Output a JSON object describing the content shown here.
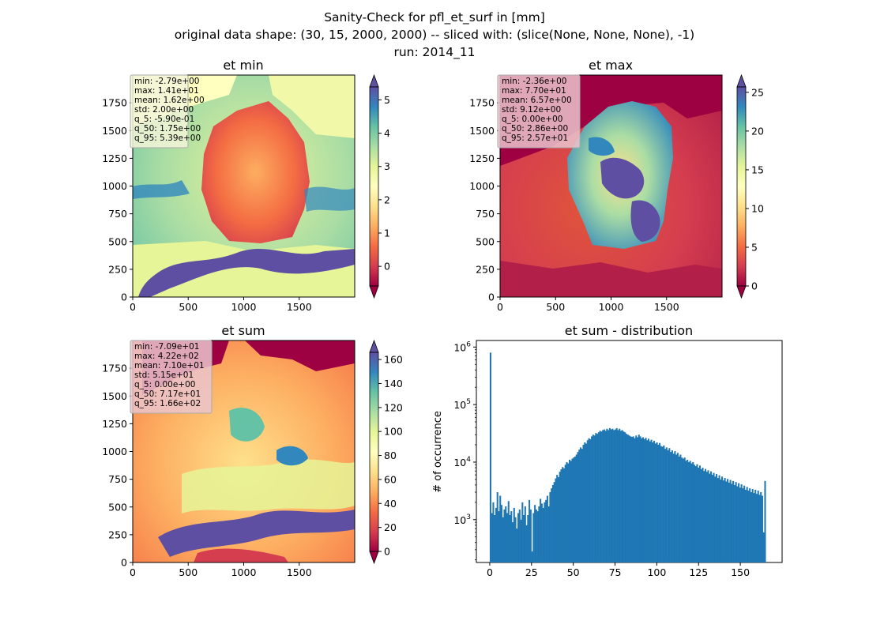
{
  "figure": {
    "suptitle_lines": [
      "Sanity-Check for pfl_et_surf in [mm]",
      "original data shape: (30, 15, 2000, 2000) -- sliced with: (slice(None, None, None), -1)",
      "run: 2014_11"
    ]
  },
  "colors": {
    "hist_bar": "#1f77b4",
    "stats_box": "rgba(235,200,205,0.75)",
    "stats_border": "#999999"
  },
  "chart_data": [
    {
      "type": "heatmap",
      "title": "et min",
      "colormap": "Spectral",
      "xticks": [
        "0",
        "500",
        "1000",
        "1500"
      ],
      "yticks": [
        "0",
        "250",
        "500",
        "750",
        "1000",
        "1250",
        "1500",
        "1750"
      ],
      "xlim": [
        0,
        2000
      ],
      "ylim": [
        0,
        2000
      ],
      "colorbar": {
        "vmin": -0.59,
        "vmax": 5.39,
        "ticks": [
          0,
          1,
          2,
          3,
          4,
          5
        ],
        "labels": [
          "0",
          "1",
          "2",
          "3",
          "4",
          "5"
        ],
        "extend": "both"
      },
      "stats": [
        "min: -2.79e+00",
        "max: 1.41e+01",
        "mean: 1.62e+00",
        "std: 2.00e+00",
        "q_5: -5.90e-01",
        "q_50: 1.75e+00",
        "q_95: 5.39e+00"
      ]
    },
    {
      "type": "heatmap",
      "title": "et max",
      "colormap": "Spectral",
      "xticks": [
        "0",
        "500",
        "1000",
        "1500"
      ],
      "yticks": [
        "0",
        "250",
        "500",
        "750",
        "1000",
        "1250",
        "1500",
        "1750"
      ],
      "xlim": [
        0,
        2000
      ],
      "ylim": [
        0,
        2000
      ],
      "colorbar": {
        "vmin": 0.0,
        "vmax": 25.7,
        "ticks": [
          0,
          5,
          10,
          15,
          20,
          25
        ],
        "labels": [
          "0",
          "5",
          "10",
          "15",
          "20",
          "25"
        ],
        "extend": "both"
      },
      "stats": [
        "min: -2.36e+00",
        "max: 7.70e+01",
        "mean: 6.57e+00",
        "std: 9.12e+00",
        "q_5: 0.00e+00",
        "q_50: 2.86e+00",
        "q_95: 2.57e+01"
      ]
    },
    {
      "type": "heatmap",
      "title": "et sum",
      "colormap": "Spectral",
      "xticks": [
        "0",
        "500",
        "1000",
        "1500"
      ],
      "yticks": [
        "0",
        "250",
        "500",
        "750",
        "1000",
        "1250",
        "1500",
        "1750"
      ],
      "xlim": [
        0,
        2000
      ],
      "ylim": [
        0,
        2000
      ],
      "colorbar": {
        "vmin": 0.0,
        "vmax": 166,
        "ticks": [
          0,
          20,
          40,
          60,
          80,
          100,
          120,
          140,
          160
        ],
        "labels": [
          "0",
          "20",
          "40",
          "60",
          "80",
          "100",
          "120",
          "140",
          "160"
        ],
        "extend": "both"
      },
      "stats": [
        "min: -7.09e+01",
        "max: 4.22e+02",
        "mean: 7.10e+01",
        "std: 5.15e+01",
        "q_5: 0.00e+00",
        "q_50: 7.17e+01",
        "q_95: 1.66e+02"
      ]
    },
    {
      "type": "bar",
      "title": "et sum - distribution",
      "ylabel": "# of occurrence",
      "xlabel": "",
      "yscale": "log",
      "xlim": [
        -8,
        175
      ],
      "ylim": [
        180,
        1300000
      ],
      "xticks": [
        0,
        25,
        50,
        75,
        100,
        125,
        150
      ],
      "xtick_labels": [
        "0",
        "25",
        "50",
        "75",
        "100",
        "125",
        "150"
      ],
      "yticks": [
        1000,
        10000,
        100000,
        1000000
      ],
      "ytick_bases": [
        "10",
        "10",
        "10",
        "10"
      ],
      "ytick_exps": [
        "3",
        "4",
        "5",
        "6"
      ],
      "bin_width": 0.83,
      "bins": [
        [
          0.0,
          800000
        ],
        [
          0.83,
          1300
        ],
        [
          1.66,
          2000
        ],
        [
          2.49,
          1200
        ],
        [
          3.32,
          1600
        ],
        [
          4.15,
          3000
        ],
        [
          4.98,
          1400
        ],
        [
          5.81,
          2600
        ],
        [
          6.64,
          1800
        ],
        [
          7.47,
          1100
        ],
        [
          8.3,
          1500
        ],
        [
          9.13,
          1700
        ],
        [
          9.96,
          1300
        ],
        [
          10.79,
          2100
        ],
        [
          11.62,
          1200
        ],
        [
          12.45,
          1400
        ],
        [
          13.28,
          900
        ],
        [
          14.11,
          1600
        ],
        [
          14.94,
          1100
        ],
        [
          15.77,
          700
        ],
        [
          16.6,
          1300
        ],
        [
          17.43,
          1500
        ],
        [
          18.26,
          1000
        ],
        [
          19.09,
          2000
        ],
        [
          19.92,
          1200
        ],
        [
          20.75,
          1700
        ],
        [
          21.58,
          800
        ],
        [
          22.41,
          1200
        ],
        [
          23.24,
          2200
        ],
        [
          24.07,
          1500
        ],
        [
          24.9,
          280
        ],
        [
          25.73,
          1300
        ],
        [
          26.56,
          1800
        ],
        [
          27.39,
          1500
        ],
        [
          28.22,
          1400
        ],
        [
          29.05,
          1700
        ],
        [
          29.88,
          2300
        ],
        [
          30.71,
          1900
        ],
        [
          31.54,
          1600
        ],
        [
          32.37,
          2000
        ],
        [
          33.2,
          2200
        ],
        [
          34.03,
          2600
        ],
        [
          34.86,
          1700
        ],
        [
          35.69,
          3000
        ],
        [
          36.52,
          3500
        ],
        [
          37.35,
          4000
        ],
        [
          38.18,
          4500
        ],
        [
          39.01,
          5200
        ],
        [
          39.84,
          6000
        ],
        [
          40.67,
          5500
        ],
        [
          41.5,
          6800
        ],
        [
          42.33,
          7500
        ],
        [
          43.16,
          8200
        ],
        [
          43.99,
          7800
        ],
        [
          44.82,
          9000
        ],
        [
          45.65,
          10000
        ],
        [
          46.48,
          9500
        ],
        [
          47.31,
          11000
        ],
        [
          48.14,
          10500
        ],
        [
          48.97,
          11500
        ],
        [
          49.8,
          12000
        ],
        [
          50.63,
          12500
        ],
        [
          51.46,
          13500
        ],
        [
          52.29,
          15000
        ],
        [
          53.12,
          16500
        ],
        [
          53.95,
          18000
        ],
        [
          54.78,
          17000
        ],
        [
          55.61,
          20000
        ],
        [
          56.44,
          22000
        ],
        [
          57.27,
          21000
        ],
        [
          58.1,
          24000
        ],
        [
          58.93,
          26000
        ],
        [
          59.76,
          25000
        ],
        [
          60.59,
          28000
        ],
        [
          61.42,
          30000
        ],
        [
          62.25,
          29000
        ],
        [
          63.08,
          32000
        ],
        [
          63.91,
          31000
        ],
        [
          64.74,
          33000
        ],
        [
          65.57,
          35000
        ],
        [
          66.4,
          34000
        ],
        [
          67.23,
          36000
        ],
        [
          68.06,
          37000
        ],
        [
          68.89,
          35000
        ],
        [
          69.72,
          38000
        ],
        [
          70.55,
          36000
        ],
        [
          71.38,
          39000
        ],
        [
          72.21,
          37000
        ],
        [
          73.04,
          38000
        ],
        [
          73.87,
          36000
        ],
        [
          74.7,
          37000
        ],
        [
          75.53,
          39000
        ],
        [
          76.36,
          36000
        ],
        [
          77.19,
          38000
        ],
        [
          78.02,
          35000
        ],
        [
          78.85,
          36000
        ],
        [
          79.68,
          34000
        ],
        [
          80.51,
          33000
        ],
        [
          81.34,
          31000
        ],
        [
          82.17,
          30000
        ],
        [
          83.0,
          29000
        ],
        [
          83.83,
          28000
        ],
        [
          84.66,
          27500
        ],
        [
          85.49,
          28000
        ],
        [
          86.32,
          26000
        ],
        [
          87.15,
          29000
        ],
        [
          87.98,
          27000
        ],
        [
          88.81,
          30000
        ],
        [
          89.64,
          28000
        ],
        [
          90.47,
          26000
        ],
        [
          91.3,
          27000
        ],
        [
          92.13,
          25000
        ],
        [
          92.96,
          26500
        ],
        [
          93.79,
          24000
        ],
        [
          94.62,
          25500
        ],
        [
          95.45,
          23000
        ],
        [
          96.28,
          24500
        ],
        [
          97.11,
          22000
        ],
        [
          97.94,
          23500
        ],
        [
          98.77,
          21000
        ],
        [
          99.6,
          22000
        ],
        [
          100.43,
          20000
        ],
        [
          101.26,
          21500
        ],
        [
          102.09,
          19000
        ],
        [
          102.92,
          18500
        ],
        [
          103.75,
          19500
        ],
        [
          104.58,
          17000
        ],
        [
          105.41,
          18000
        ],
        [
          106.24,
          16000
        ],
        [
          107.07,
          17500
        ],
        [
          107.9,
          15000
        ],
        [
          108.73,
          16000
        ],
        [
          109.56,
          14000
        ],
        [
          110.39,
          15500
        ],
        [
          111.22,
          13500
        ],
        [
          112.05,
          14500
        ],
        [
          112.88,
          12500
        ],
        [
          113.71,
          13500
        ],
        [
          114.54,
          12000
        ],
        [
          115.37,
          11500
        ],
        [
          116.2,
          12000
        ],
        [
          117.03,
          10500
        ],
        [
          117.86,
          11000
        ],
        [
          118.69,
          10000
        ],
        [
          119.52,
          10500
        ],
        [
          120.35,
          9500
        ],
        [
          121.18,
          10000
        ],
        [
          122.01,
          9000
        ],
        [
          122.84,
          8500
        ],
        [
          123.67,
          9200
        ],
        [
          124.5,
          8000
        ],
        [
          125.33,
          8700
        ],
        [
          126.16,
          7500
        ],
        [
          126.99,
          8000
        ],
        [
          127.82,
          7000
        ],
        [
          128.65,
          7600
        ],
        [
          129.48,
          6800
        ],
        [
          130.31,
          7200
        ],
        [
          131.14,
          6300
        ],
        [
          131.97,
          6900
        ],
        [
          132.8,
          6000
        ],
        [
          133.63,
          6500
        ],
        [
          134.46,
          5600
        ],
        [
          135.29,
          6200
        ],
        [
          136.12,
          5300
        ],
        [
          136.95,
          5900
        ],
        [
          137.78,
          5000
        ],
        [
          138.61,
          5600
        ],
        [
          139.44,
          4800
        ],
        [
          140.27,
          5300
        ],
        [
          141.1,
          4600
        ],
        [
          141.93,
          5100
        ],
        [
          142.76,
          4400
        ],
        [
          143.59,
          4900
        ],
        [
          144.42,
          4200
        ],
        [
          145.25,
          4700
        ],
        [
          146.08,
          4000
        ],
        [
          146.91,
          4500
        ],
        [
          147.74,
          3800
        ],
        [
          148.57,
          4300
        ],
        [
          149.4,
          3600
        ],
        [
          150.23,
          4100
        ],
        [
          151.06,
          3500
        ],
        [
          151.89,
          3900
        ],
        [
          152.72,
          3300
        ],
        [
          153.55,
          3700
        ],
        [
          154.38,
          3200
        ],
        [
          155.21,
          3500
        ],
        [
          156.04,
          3000
        ],
        [
          156.87,
          3400
        ],
        [
          157.7,
          2900
        ],
        [
          158.53,
          3300
        ],
        [
          159.36,
          2800
        ],
        [
          160.19,
          3200
        ],
        [
          161.02,
          2700
        ],
        [
          161.85,
          3000
        ],
        [
          162.68,
          2600
        ],
        [
          163.51,
          600
        ],
        [
          164.34,
          4700
        ]
      ]
    }
  ]
}
